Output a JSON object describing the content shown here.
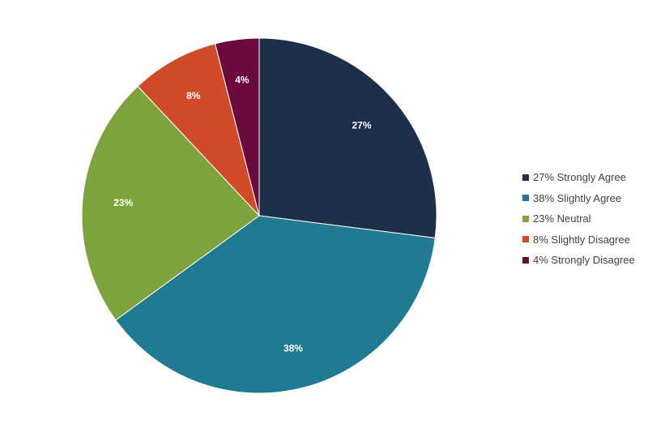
{
  "chart_data": {
    "type": "pie",
    "title": "",
    "categories": [
      "Strongly Agree",
      "Slightly Agree",
      "Neutral",
      "Slightly Disagree",
      "Strongly Disagree"
    ],
    "values": [
      27,
      38,
      23,
      8,
      4
    ],
    "slice_labels": [
      "27%",
      "38%",
      "23%",
      "8%",
      "4%"
    ],
    "legend_labels": [
      "27% Strongly Agree",
      "38% Slightly Agree",
      "23% Neutral",
      "8% Slightly Disagree",
      "4% Strongly Disagree"
    ],
    "colors": [
      "#1e2f4a",
      "#1f7a92",
      "#7fa33c",
      "#d24b28",
      "#6b0b3d"
    ],
    "legend_position": "right",
    "start": "12 o'clock",
    "direction": "clockwise"
  }
}
